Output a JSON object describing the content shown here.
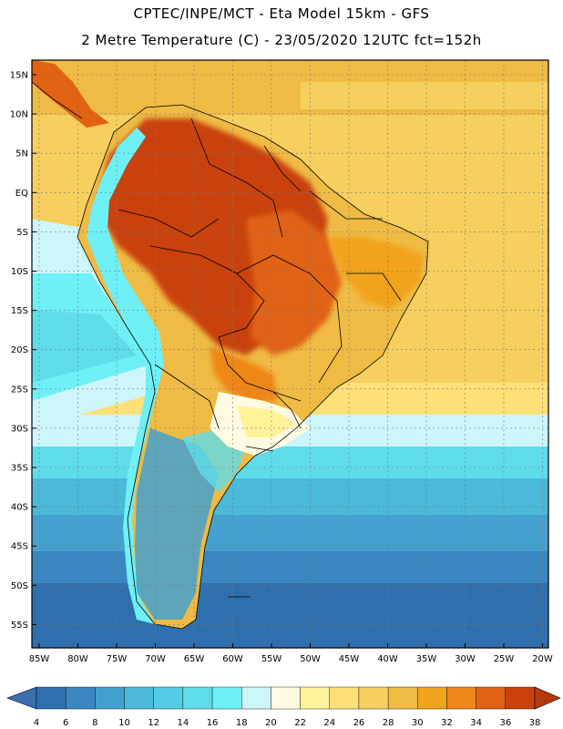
{
  "header": {
    "line1": "CPTEC/INPE/MCT -  Eta Model 15km - GFS",
    "line2": "2 Metre Temperature (C) - 23/05/2020 12UTC fct=152h"
  },
  "map": {
    "lat_labels": [
      "15N",
      "10N",
      "5N",
      "EQ",
      "5S",
      "10S",
      "15S",
      "20S",
      "25S",
      "30S",
      "35S",
      "40S",
      "45S",
      "50S",
      "55S"
    ],
    "lon_labels": [
      "85W",
      "80W",
      "75W",
      "70W",
      "65W",
      "60W",
      "55W",
      "50W",
      "45W",
      "40W",
      "35W",
      "30W",
      "25W",
      "20W"
    ]
  },
  "colorbar": {
    "ticks": [
      "4",
      "6",
      "8",
      "10",
      "12",
      "14",
      "16",
      "18",
      "20",
      "22",
      "24",
      "26",
      "28",
      "30",
      "32",
      "34",
      "36",
      "38"
    ],
    "colors": [
      "#2f6fae",
      "#3a86c0",
      "#44a1cf",
      "#4bb9da",
      "#53cde3",
      "#5fdcea",
      "#6ff0f6",
      "#cdf6fb",
      "#fffbe2",
      "#fff39a",
      "#fde077",
      "#f6cf5e",
      "#efbb45",
      "#f1a31d",
      "#ef8719",
      "#e06212",
      "#c9420c"
    ],
    "under_color": "#3b6fb0",
    "over_color": "#b53a0b"
  }
}
